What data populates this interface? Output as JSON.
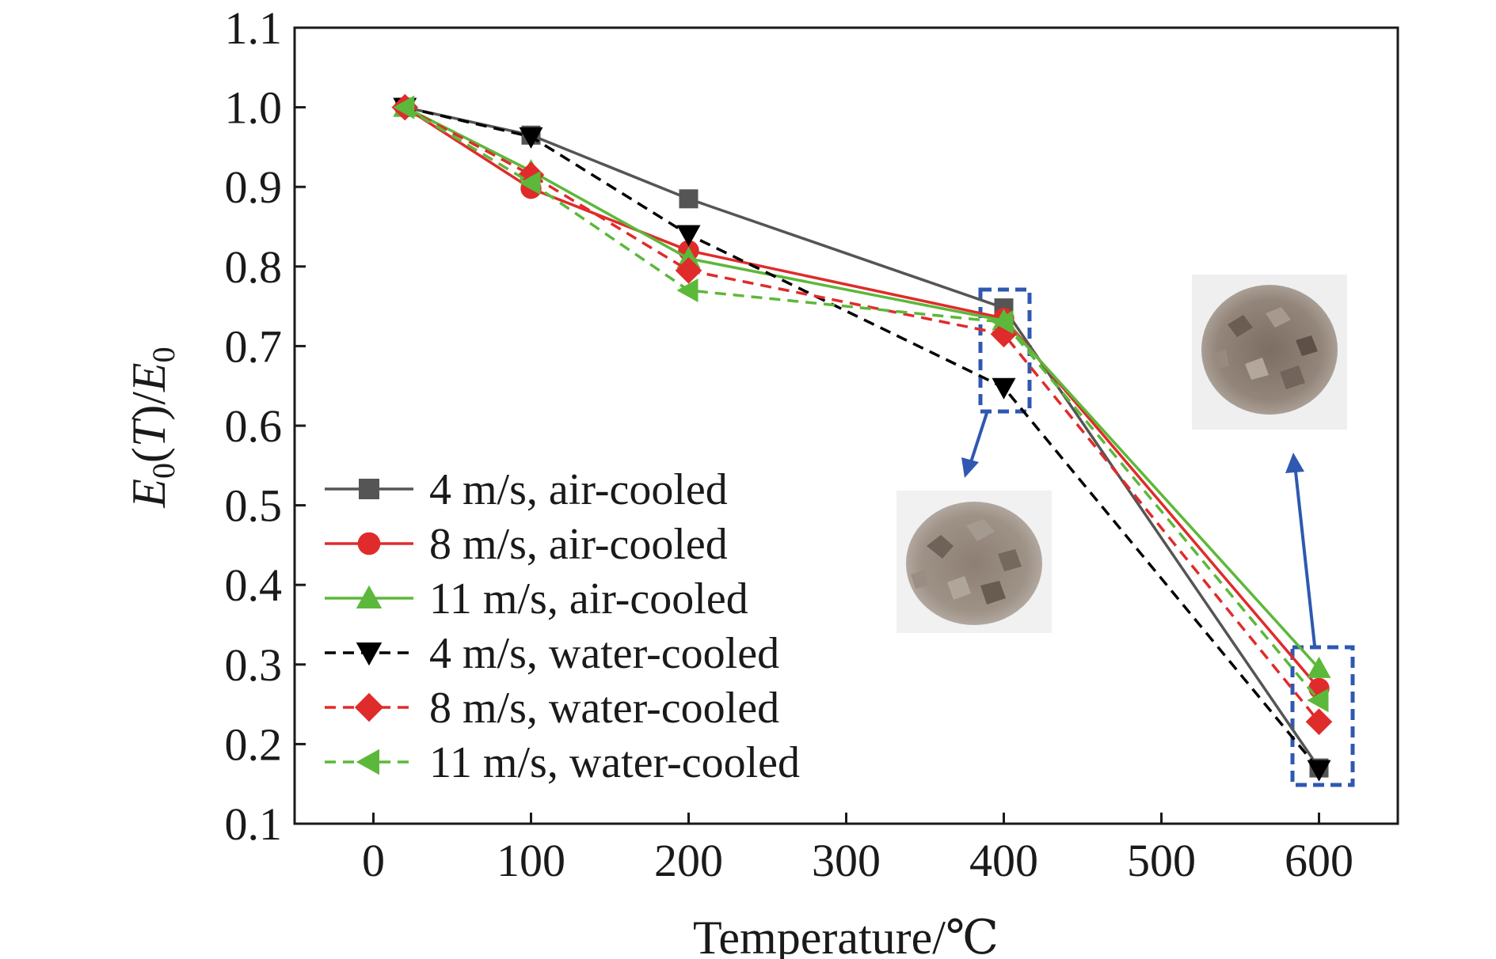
{
  "chart_data": {
    "type": "line",
    "xlabel": "Temperature/℃",
    "ylabel": {
      "E": "E",
      "sub": "0",
      "mid": "(",
      "T": "T",
      "close": ")/",
      "E2": "E",
      "sub2": "0"
    },
    "xlim": [
      -50,
      650
    ],
    "ylim": [
      0.1,
      1.1
    ],
    "xticks": [
      0,
      100,
      200,
      300,
      400,
      500,
      600
    ],
    "yticks": [
      0.1,
      0.2,
      0.3,
      0.4,
      0.5,
      0.6,
      0.7,
      0.8,
      0.9,
      1.0,
      1.1
    ],
    "ytick_labels": [
      "0.1",
      "0.2",
      "0.3",
      "0.4",
      "0.5",
      "0.6",
      "0.7",
      "0.8",
      "0.9",
      "1.0",
      "1.1"
    ],
    "xtick_labels": [
      "0",
      "100",
      "200",
      "300",
      "400",
      "500",
      "600"
    ],
    "x": [
      20,
      100,
      200,
      400,
      600
    ],
    "grid": false,
    "legend_position": "left",
    "series": [
      {
        "name": "4 m/s, air-cooled",
        "color": "#555555",
        "marker": "square",
        "dashed": false,
        "values": [
          1.0,
          0.965,
          0.885,
          0.748,
          0.17
        ]
      },
      {
        "name": "8 m/s, air-cooled",
        "color": "#e02b2b",
        "marker": "circle",
        "dashed": false,
        "values": [
          1.0,
          0.898,
          0.82,
          0.735,
          0.27
        ]
      },
      {
        "name": "11 m/s, air-cooled",
        "color": "#5cb83a",
        "marker": "triangle-up",
        "dashed": false,
        "values": [
          1.0,
          0.92,
          0.81,
          0.732,
          0.295
        ]
      },
      {
        "name": "4 m/s, water-cooled",
        "color": "#000000",
        "marker": "triangle-down",
        "dashed": true,
        "values": [
          1.0,
          0.963,
          0.84,
          0.648,
          0.168
        ]
      },
      {
        "name": "8 m/s, water-cooled",
        "color": "#e02b2b",
        "marker": "diamond",
        "dashed": true,
        "values": [
          1.0,
          0.915,
          0.795,
          0.715,
          0.228
        ]
      },
      {
        "name": "11 m/s, water-cooled",
        "color": "#5cb83a",
        "marker": "triangle-left",
        "dashed": true,
        "values": [
          1.0,
          0.905,
          0.77,
          0.73,
          0.255
        ]
      }
    ],
    "annotations": [
      {
        "target": "400",
        "highlight_color": "#2f58b0",
        "inset": "rock-sample-photo-400"
      },
      {
        "target": "600",
        "highlight_color": "#2f58b0",
        "inset": "rock-sample-photo-600"
      }
    ]
  }
}
